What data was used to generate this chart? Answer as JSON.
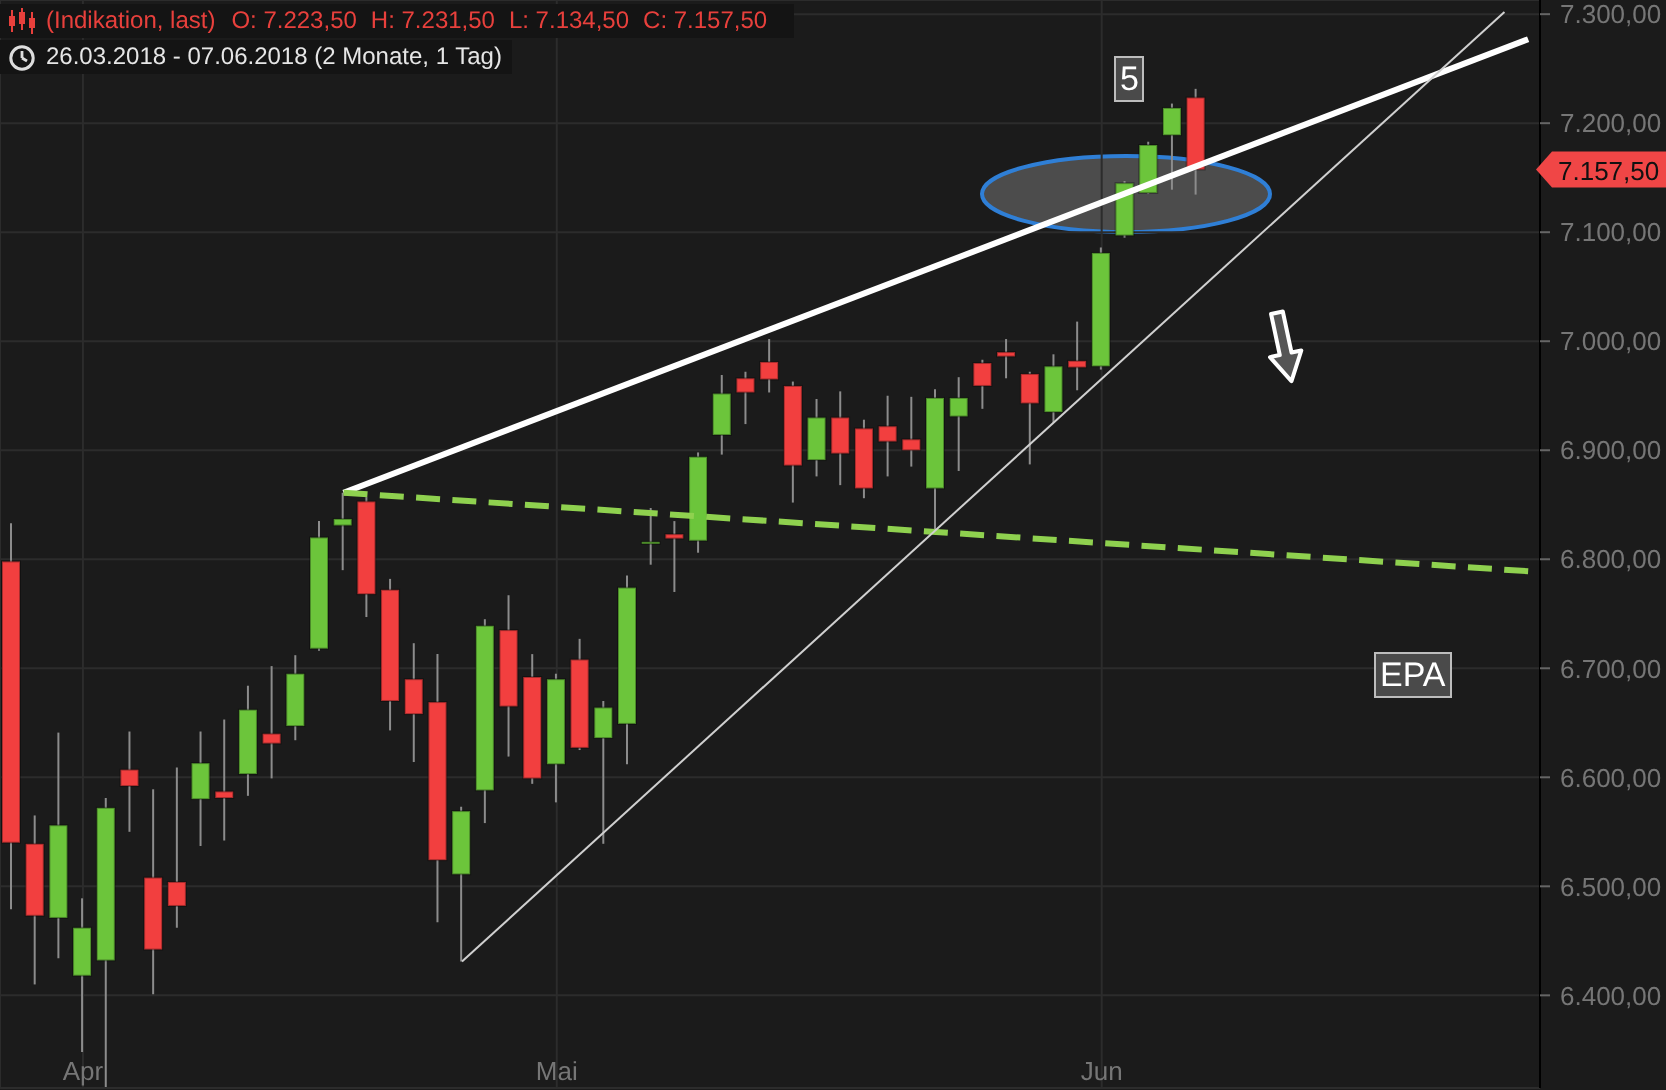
{
  "chart_data": {
    "type": "candlestick",
    "title": "(Indikation, last)",
    "subtitle": "26.03.2018 - 07.06.2018 (2 Monate, 1 Tag)",
    "annotations": [
      "O: 7.223,50",
      "H: 7.231,50",
      "L: 7.134,50",
      "C: 7.157,50",
      "5",
      "EPA",
      "7.157,50"
    ],
    "categories": [
      null,
      null,
      null,
      "Apr",
      null,
      null,
      null,
      null,
      null,
      null,
      null,
      null,
      null,
      null,
      null,
      null,
      null,
      null,
      null,
      null,
      null,
      null,
      null,
      "Mai",
      null,
      null,
      null,
      null,
      null,
      null,
      null,
      null,
      null,
      null,
      null,
      null,
      null,
      null,
      null,
      null,
      null,
      null,
      null,
      null,
      null,
      null,
      "Jun",
      null,
      null,
      null,
      null,
      null,
      null,
      null,
      null,
      null,
      null,
      null,
      null,
      null,
      null,
      null,
      null,
      null,
      null
    ],
    "ohlc": [
      [
        6798,
        6833,
        6479,
        6540
      ],
      [
        6539,
        6565,
        6410,
        6473
      ],
      [
        6471,
        6641,
        6434,
        6556
      ],
      [
        6418,
        6489,
        6348,
        6462
      ],
      [
        6432,
        6581,
        6316,
        6572
      ],
      [
        6607,
        6642,
        6550,
        6592
      ],
      [
        6508,
        6589,
        6401,
        6442
      ],
      [
        6504,
        6609,
        6462,
        6482
      ],
      [
        6580,
        6642,
        6537,
        6613
      ],
      [
        6587,
        6653,
        6542,
        6581
      ],
      [
        6603,
        6684,
        6583,
        6662
      ],
      [
        6640,
        6702,
        6599,
        6631
      ],
      [
        6647,
        6712,
        6634,
        6695
      ],
      [
        6718,
        6835,
        6716,
        6820
      ],
      [
        6831,
        6861,
        6790,
        6837
      ],
      [
        6853,
        6857,
        6747,
        6768
      ],
      [
        6772,
        6782,
        6643,
        6670
      ],
      [
        6690,
        6723,
        6614,
        6658
      ],
      [
        6669,
        6713,
        6467,
        6524
      ],
      [
        6511,
        6573,
        6431,
        6569
      ],
      [
        6588,
        6745,
        6558,
        6739
      ],
      [
        6735,
        6767,
        6619,
        6665
      ],
      [
        6692,
        6713,
        6594,
        6599
      ],
      [
        6612,
        6695,
        6577,
        6690
      ],
      [
        6708,
        6727,
        6625,
        6627
      ],
      [
        6636,
        6670,
        6539,
        6664
      ],
      [
        6649,
        6785,
        6612,
        6774
      ],
      [
        6816,
        6847,
        6795,
        6816
      ],
      [
        6823,
        6835,
        6770,
        6819
      ],
      [
        6817,
        6898,
        6806,
        6894
      ],
      [
        6914,
        6969,
        6896,
        6952
      ],
      [
        6966,
        6972,
        6924,
        6953
      ],
      [
        6981,
        7002,
        6953,
        6965
      ],
      [
        6959,
        6963,
        6852,
        6886
      ],
      [
        6891,
        6947,
        6876,
        6930
      ],
      [
        6930,
        6954,
        6868,
        6897
      ],
      [
        6920,
        6928,
        6856,
        6865
      ],
      [
        6922,
        6950,
        6876,
        6908
      ],
      [
        6910,
        6949,
        6885,
        6900
      ],
      [
        6865,
        6956,
        6826,
        6948
      ],
      [
        6931,
        6967,
        6881,
        6948
      ],
      [
        6980,
        6983,
        6938,
        6959
      ],
      [
        6990,
        7002,
        6966,
        6986
      ],
      [
        6970,
        6972,
        6887,
        6943
      ],
      [
        6935,
        6988,
        6925,
        6977
      ],
      [
        6982,
        7018,
        6955,
        6976
      ],
      [
        6977,
        7086,
        6974,
        7081
      ],
      [
        7097,
        7147,
        7095,
        7145
      ],
      [
        7136,
        7183,
        7135,
        7180
      ],
      [
        7189,
        7218,
        7139,
        7214
      ],
      [
        7223.5,
        7231.5,
        7134.5,
        7157.5
      ],
      null,
      null,
      null,
      null,
      null,
      null,
      null,
      null,
      null,
      null,
      null,
      null,
      null,
      null
    ],
    "colors": [
      "#f23f3f",
      "#f23f3f",
      "#6cc53b",
      "#6cc53b",
      "#6cc53b",
      "#f23f3f",
      "#f23f3f",
      "#f23f3f",
      "#6cc53b",
      "#f23f3f",
      "#6cc53b",
      "#f23f3f",
      "#6cc53b",
      "#6cc53b",
      "#6cc53b",
      "#f23f3f",
      "#f23f3f",
      "#f23f3f",
      "#f23f3f",
      "#6cc53b",
      "#6cc53b",
      "#f23f3f",
      "#f23f3f",
      "#6cc53b",
      "#f23f3f",
      "#6cc53b",
      "#6cc53b",
      "#6cc53b",
      "#f23f3f",
      "#6cc53b",
      "#6cc53b",
      "#f23f3f",
      "#f23f3f",
      "#f23f3f",
      "#6cc53b",
      "#f23f3f",
      "#f23f3f",
      "#f23f3f",
      "#f23f3f",
      "#6cc53b",
      "#6cc53b",
      "#f23f3f",
      "#f23f3f",
      "#f23f3f",
      "#6cc53b",
      "#f23f3f",
      "#6cc53b",
      "#6cc53b",
      "#6cc53b",
      "#6cc53b",
      "#f23f3f",
      null,
      null,
      null,
      null,
      null,
      null,
      null,
      null,
      null,
      null,
      null,
      null,
      null,
      null
    ],
    "series": [
      {
        "type": "line",
        "color": "#ffffff",
        "line_style": "solid",
        "values": [
          null,
          null,
          null,
          null,
          null,
          null,
          null,
          null,
          null,
          null,
          null,
          null,
          null,
          null,
          6861,
          null,
          null,
          null,
          null,
          null,
          null,
          null,
          null,
          null,
          null,
          null,
          null,
          null,
          null,
          null,
          null,
          null,
          null,
          null,
          null,
          null,
          null,
          null,
          null,
          null,
          null,
          null,
          null,
          null,
          null,
          null,
          null,
          null,
          null,
          null,
          null,
          null,
          null,
          null,
          null,
          null,
          null,
          null,
          null,
          null,
          null,
          null,
          null,
          null,
          7277
        ]
      },
      {
        "type": "line",
        "color": "#8fd14f",
        "line_style": "dashed",
        "values": [
          null,
          null,
          null,
          null,
          null,
          null,
          null,
          null,
          null,
          null,
          null,
          null,
          null,
          null,
          6861,
          null,
          null,
          null,
          null,
          null,
          null,
          null,
          null,
          null,
          null,
          null,
          null,
          null,
          null,
          null,
          null,
          null,
          null,
          null,
          null,
          null,
          null,
          null,
          null,
          null,
          null,
          null,
          null,
          null,
          null,
          null,
          null,
          null,
          null,
          null,
          null,
          null,
          null,
          null,
          null,
          null,
          null,
          null,
          null,
          null,
          null,
          null,
          null,
          null,
          6789
        ]
      },
      {
        "type": "line",
        "color": "#d0d0d0",
        "line_style": "solid",
        "values": [
          null,
          null,
          null,
          null,
          null,
          null,
          null,
          null,
          null,
          null,
          null,
          null,
          null,
          null,
          null,
          null,
          null,
          null,
          null,
          6431,
          null,
          null,
          null,
          null,
          null,
          null,
          null,
          null,
          null,
          null,
          null,
          null,
          null,
          null,
          null,
          null,
          null,
          null,
          null,
          null,
          null,
          null,
          null,
          null,
          null,
          null,
          null,
          null,
          null,
          null,
          null,
          null,
          null,
          null,
          null,
          null,
          null,
          null,
          null,
          null,
          null,
          null,
          null,
          7302,
          null
        ]
      }
    ],
    "ylim": [
      6315,
      7313
    ],
    "yticks": [
      {
        "value": 6400,
        "label": "6.400,00"
      },
      {
        "value": 6500,
        "label": "6.500,00"
      },
      {
        "value": 6600,
        "label": "6.600,00"
      },
      {
        "value": 6700,
        "label": "6.700,00"
      },
      {
        "value": 6800,
        "label": "6.800,00"
      },
      {
        "value": 6900,
        "label": "6.900,00"
      },
      {
        "value": 7000,
        "label": "7.000,00"
      },
      {
        "value": 7100,
        "label": "7.100,00"
      },
      {
        "value": 7200,
        "label": "7.200,00"
      },
      {
        "value": 7300,
        "label": "7.300,00"
      }
    ],
    "grid": true
  }
}
